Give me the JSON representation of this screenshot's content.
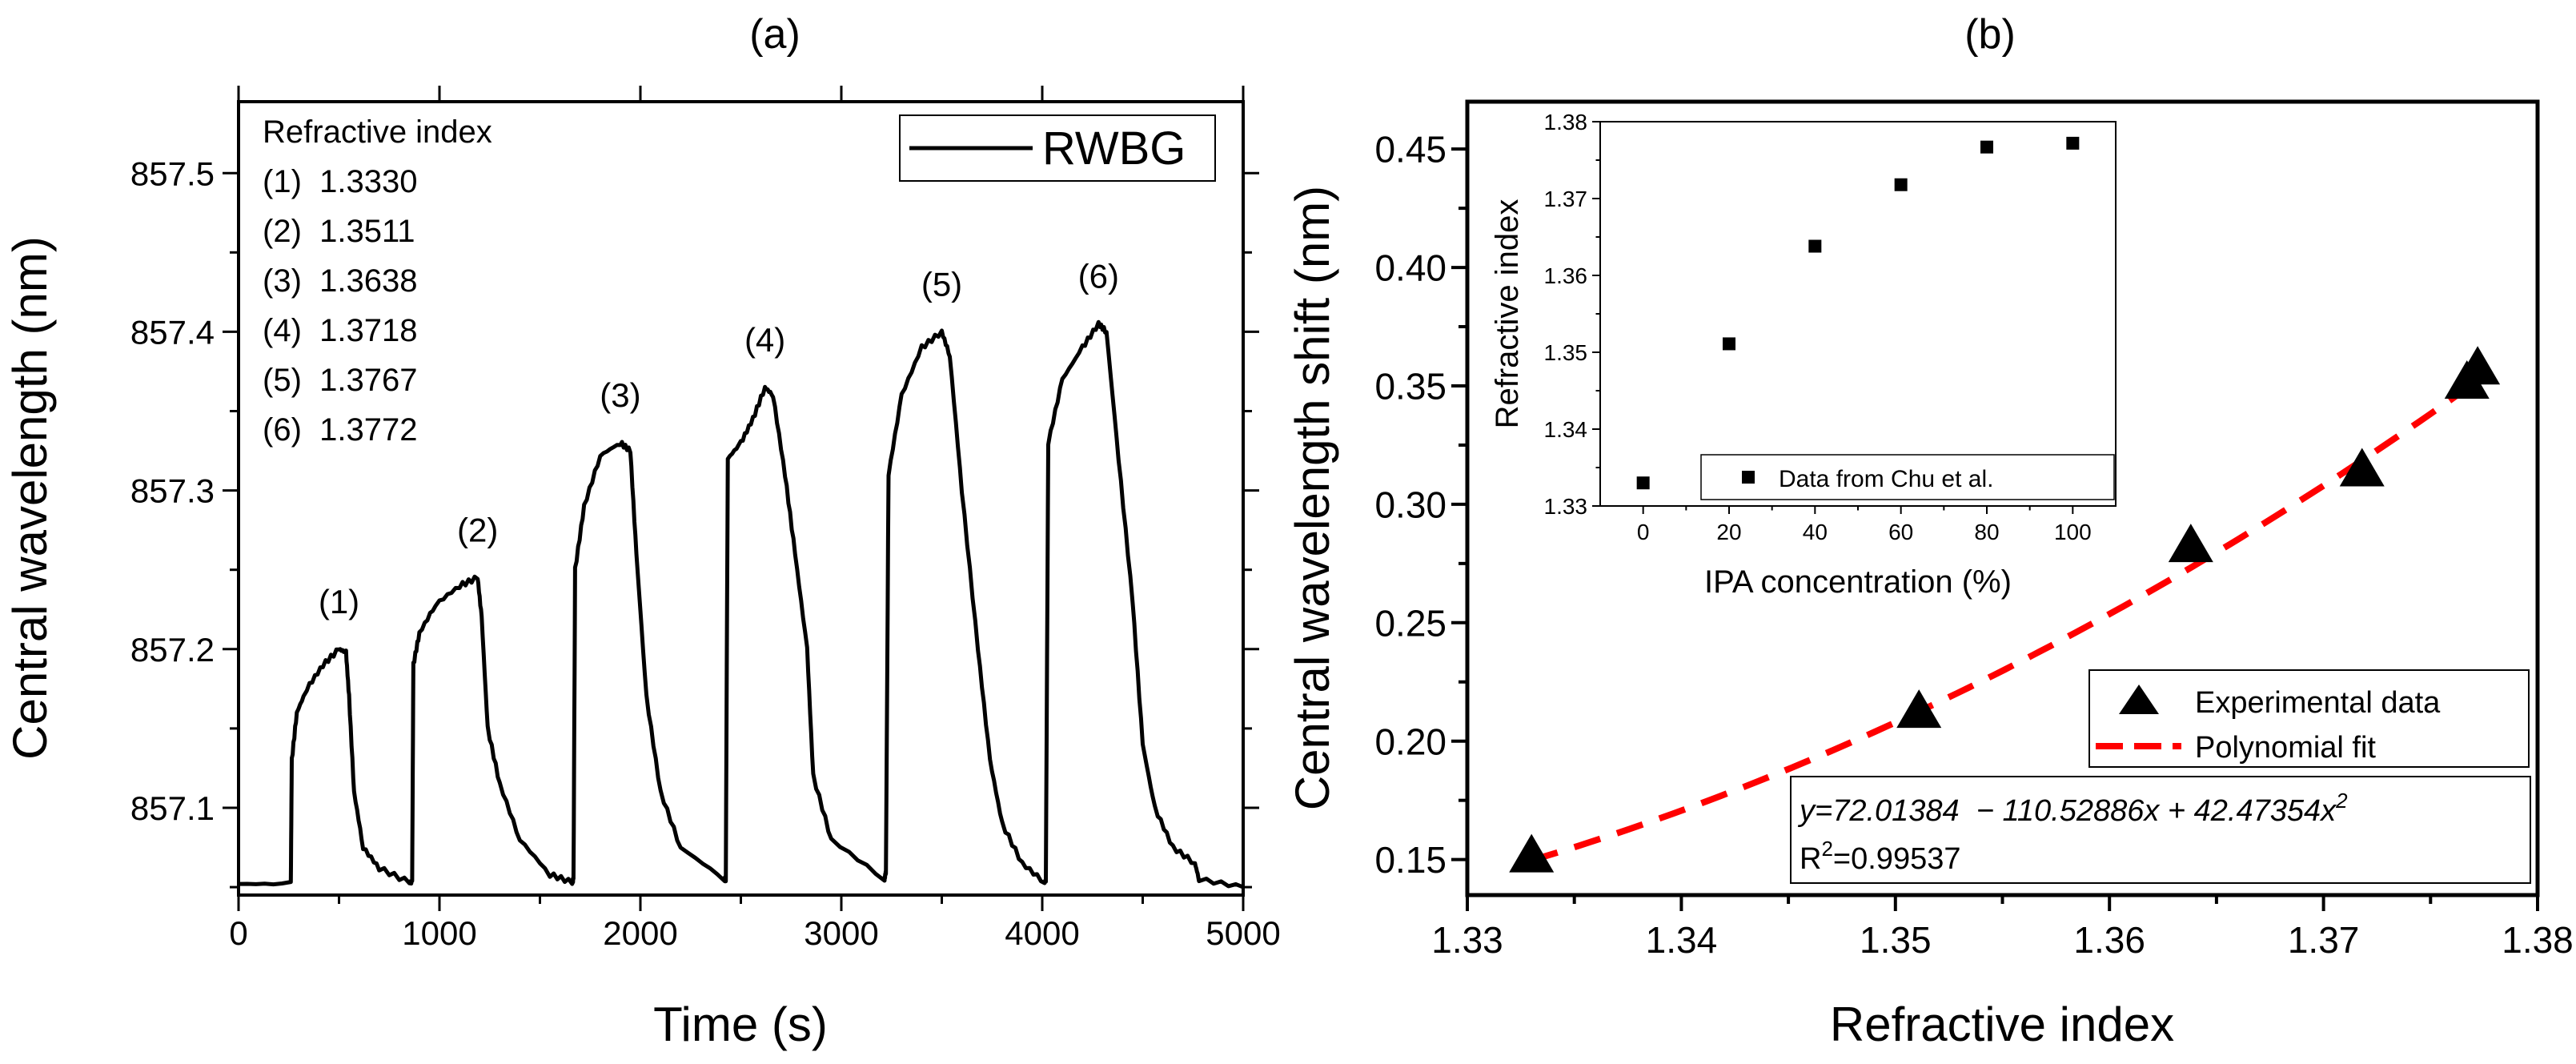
{
  "chart_data": [
    {
      "type": "line",
      "title": "(a)",
      "xlabel": "Time (s)",
      "ylabel": "Central wavelength (nm)",
      "xlim": [
        0,
        5000
      ],
      "ylim": [
        857.045,
        857.545
      ],
      "xticks": [
        0,
        1000,
        2000,
        3000,
        4000,
        5000
      ],
      "yticks": [
        857.1,
        857.2,
        857.3,
        857.4,
        857.5
      ],
      "xtick_labels": [
        "0",
        "1000",
        "2000",
        "3000",
        "4000",
        "5000"
      ],
      "ytick_labels": [
        "857.1",
        "857.2",
        "857.3",
        "857.4",
        "857.5"
      ],
      "legend": {
        "position": "top-right",
        "entries": [
          "RWBG"
        ]
      },
      "grid": false,
      "annotation_title": "Refractive index",
      "annotations": [
        "(1)  1.3330",
        "(2)  1.3511",
        "(3)  1.3638",
        "(4)  1.3718",
        "(5)  1.3767",
        "(6)  1.3772"
      ],
      "peak_labels": [
        "(1)",
        "(2)",
        "(3)",
        "(4)",
        "(5)",
        "(6)"
      ],
      "peaks": [
        [
          500,
          857.2
        ],
        [
          1190,
          857.245
        ],
        [
          1900,
          857.33
        ],
        [
          2620,
          857.365
        ],
        [
          3500,
          857.4
        ],
        [
          4280,
          857.405
        ]
      ],
      "series": [
        {
          "name": "RWBG",
          "color": "#000000",
          "x": [
            0,
            260,
            265,
            290,
            340,
            420,
            500,
            535,
            550,
            575,
            620,
            700,
            850,
            864,
            870,
            900,
            980,
            1100,
            1190,
            1210,
            1240,
            1300,
            1400,
            1550,
            1660,
            1667,
            1675,
            1720,
            1800,
            1900,
            1950,
            1980,
            2030,
            2100,
            2200,
            2420,
            2425,
            2435,
            2500,
            2560,
            2620,
            2660,
            2720,
            2770,
            2830,
            2860,
            2950,
            3215,
            3222,
            3235,
            3300,
            3400,
            3500,
            3540,
            3600,
            3680,
            3740,
            3800,
            3900,
            4012,
            4018,
            4030,
            4100,
            4200,
            4280,
            4320,
            4380,
            4450,
            4500,
            4560,
            4650,
            4760,
            4780,
            5000
          ],
          "y": [
            857.052,
            857.052,
            857.13,
            857.16,
            857.175,
            857.19,
            857.2,
            857.198,
            857.17,
            857.11,
            857.075,
            857.062,
            857.053,
            857.053,
            857.19,
            857.21,
            857.228,
            857.24,
            857.245,
            857.22,
            857.15,
            857.115,
            857.08,
            857.058,
            857.053,
            857.055,
            857.25,
            857.29,
            857.322,
            857.33,
            857.325,
            857.26,
            857.17,
            857.11,
            857.075,
            857.055,
            857.055,
            857.32,
            857.33,
            857.345,
            857.365,
            857.36,
            857.31,
            857.26,
            857.2,
            857.12,
            857.08,
            857.055,
            857.06,
            857.31,
            857.36,
            857.39,
            857.4,
            857.385,
            857.3,
            857.2,
            857.13,
            857.09,
            857.065,
            857.053,
            857.055,
            857.33,
            857.37,
            857.39,
            857.405,
            857.4,
            857.32,
            857.23,
            857.14,
            857.1,
            857.075,
            857.065,
            857.055,
            857.05
          ]
        }
      ]
    },
    {
      "type": "scatter",
      "title": "(b)",
      "xlabel": "Refractive index",
      "ylabel": "Central wavelength shift (nm)",
      "xlim": [
        1.33,
        1.38
      ],
      "ylim": [
        0.135,
        0.47
      ],
      "xticks": [
        1.33,
        1.34,
        1.35,
        1.36,
        1.37,
        1.38
      ],
      "yticks": [
        0.15,
        0.2,
        0.25,
        0.3,
        0.35,
        0.4,
        0.45
      ],
      "xtick_labels": [
        "1.33",
        "1.34",
        "1.35",
        "1.36",
        "1.37",
        "1.38"
      ],
      "ytick_labels": [
        "0.15",
        "0.20",
        "0.25",
        "0.30",
        "0.35",
        "0.40",
        "0.45"
      ],
      "grid": false,
      "legend": {
        "position": "bottom-right",
        "entries": [
          "Experimental data",
          "Polynomial fit"
        ]
      },
      "series": [
        {
          "name": "Experimental data",
          "color": "#000000",
          "marker": "triangle",
          "x": [
            1.333,
            1.3511,
            1.3638,
            1.3718,
            1.3767,
            1.3772
          ],
          "y": [
            0.15,
            0.211,
            0.281,
            0.313,
            0.35,
            0.356
          ]
        },
        {
          "name": "Polynomial fit",
          "color": "#ff0000",
          "style": "dashed",
          "coefficients": [
            72.01384,
            -110.52886,
            42.47354
          ],
          "x_range": [
            1.333,
            1.3772
          ]
        }
      ],
      "equation": {
        "prefix": "y=72.01384  − 110.52886x + 42.47354x",
        "sup": "2",
        "r2_prefix": "R",
        "r2_sup": "2",
        "r2_value": "=0.99537"
      },
      "inset": {
        "type": "scatter",
        "xlabel": "IPA concentration (%)",
        "ylabel": "Refractive index",
        "xlim": [
          -10,
          110
        ],
        "ylim": [
          1.33,
          1.38
        ],
        "xticks": [
          0,
          20,
          40,
          60,
          80,
          100
        ],
        "yticks": [
          1.33,
          1.34,
          1.35,
          1.36,
          1.37,
          1.38
        ],
        "xtick_labels": [
          "0",
          "20",
          "40",
          "60",
          "80",
          "100"
        ],
        "ytick_labels": [
          "1.33",
          "1.34",
          "1.35",
          "1.36",
          "1.37",
          "1.38"
        ],
        "legend": {
          "position": "bottom-right",
          "entries": [
            "Data from Chu et al."
          ]
        },
        "series": [
          {
            "name": "Data from Chu et al.",
            "color": "#000000",
            "marker": "square",
            "x": [
              0,
              20,
              40,
              60,
              80,
              100
            ],
            "y": [
              1.333,
              1.3511,
              1.3638,
              1.3718,
              1.3767,
              1.3772
            ]
          }
        ]
      }
    }
  ]
}
